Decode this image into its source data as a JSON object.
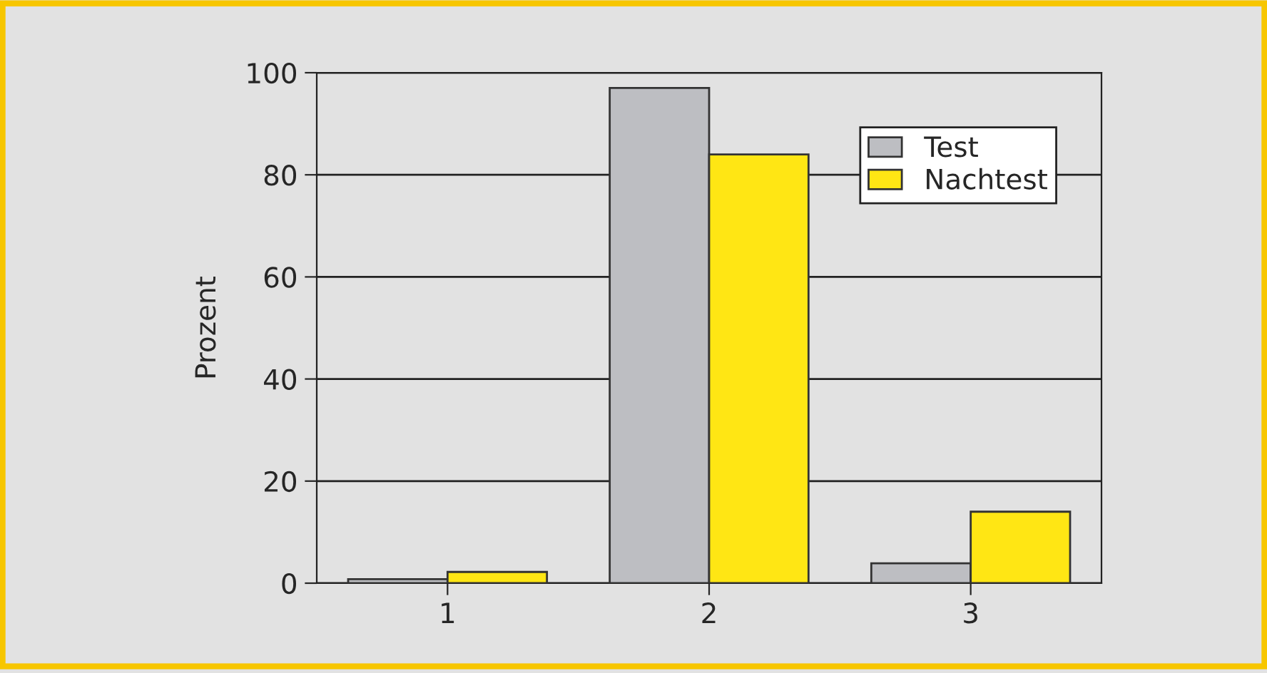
{
  "chart_data": {
    "type": "bar",
    "ylabel": "Prozent",
    "categories": [
      "1",
      "2",
      "3"
    ],
    "series": [
      {
        "name": "Test",
        "color": "#bdbec2",
        "values": [
          0.8,
          97,
          3.9
        ]
      },
      {
        "name": "Nachtest",
        "color": "#ffe614",
        "values": [
          2.2,
          84,
          14
        ]
      }
    ],
    "ylim": [
      0,
      100
    ],
    "yticks": [
      0,
      20,
      40,
      60,
      80,
      100
    ],
    "grid": "y",
    "legend": "top right"
  }
}
